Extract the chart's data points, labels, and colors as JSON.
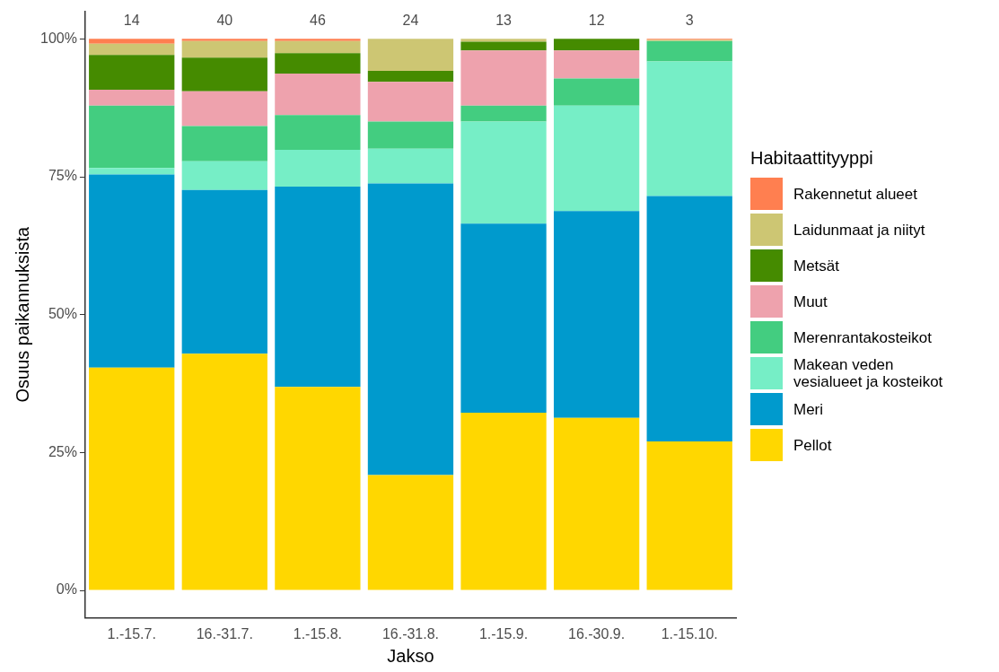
{
  "chart_data": {
    "type": "bar",
    "stacked": true,
    "xlabel": "Jakso",
    "ylabel": "Osuus paikannuksista",
    "legend_title": "Habitaattityyppi",
    "categories": [
      "1.-15.7.",
      "16.-31.7.",
      "1.-15.8.",
      "16.-31.8.",
      "1.-15.9.",
      "16.-30.9.",
      "1.-15.10."
    ],
    "series": [
      {
        "name": "Pellot",
        "color": "#ffd700",
        "values": [
          40.4,
          42.9,
          36.9,
          20.9,
          32.2,
          31.3,
          27.0
        ]
      },
      {
        "name": "Meri",
        "color": "#009acd",
        "values": [
          35.0,
          29.7,
          36.3,
          52.9,
          34.3,
          37.5,
          44.5
        ]
      },
      {
        "name": "Makean veden\nvesialueet ja kosteikot",
        "color": "#76eec6",
        "values": [
          1.2,
          5.2,
          6.7,
          6.3,
          18.5,
          19.1,
          24.4
        ]
      },
      {
        "name": "Merenrantakosteikot",
        "color": "#43cd80",
        "values": [
          11.3,
          6.4,
          6.3,
          4.9,
          2.9,
          4.9,
          3.7
        ]
      },
      {
        "name": "Muut",
        "color": "#eea2ad",
        "values": [
          2.9,
          6.3,
          7.5,
          7.2,
          10.0,
          5.1,
          0
        ]
      },
      {
        "name": "Metsät",
        "color": "#458b00",
        "values": [
          6.3,
          6.1,
          3.7,
          2.0,
          1.6,
          2.1,
          0
        ]
      },
      {
        "name": "Laidunmaat ja niityt",
        "color": "#cdc673",
        "values": [
          2.0,
          3.0,
          2.2,
          5.8,
          0.5,
          0,
          0.2
        ]
      },
      {
        "name": "Rakennetut alueet",
        "color": "#ff7f50",
        "values": [
          0.9,
          0.4,
          0.4,
          0,
          0,
          0,
          0.2
        ]
      }
    ],
    "annotations": [
      "14",
      "40",
      "46",
      "24",
      "13",
      "12",
      "3"
    ],
    "ylim": [
      -5,
      105
    ],
    "yticks": [
      {
        "value": 0,
        "label": "0%"
      },
      {
        "value": 25,
        "label": "25%"
      },
      {
        "value": 50,
        "label": "50%"
      },
      {
        "value": 75,
        "label": "75%"
      },
      {
        "value": 100,
        "label": "100%"
      }
    ],
    "grid": false,
    "legend": "right"
  }
}
